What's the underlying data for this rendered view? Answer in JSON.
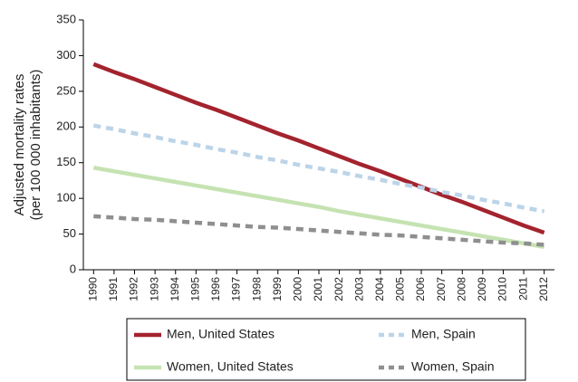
{
  "chart_data": {
    "type": "line",
    "y_label": [
      "Adjusted mortality rates",
      "(per 100 000 inhabitants)"
    ],
    "categories": [
      "1990",
      "1991",
      "1992",
      "1993",
      "1994",
      "1995",
      "1996",
      "1997",
      "1998",
      "1999",
      "2000",
      "2001",
      "2002",
      "2003",
      "2004",
      "2005",
      "2006",
      "2007",
      "2008",
      "2009",
      "2010",
      "2011",
      "2012"
    ],
    "series": [
      {
        "name": "Men, United States",
        "color": "#a3232e",
        "style": "solid",
        "values": [
          288,
          277,
          267,
          256,
          245,
          234,
          224,
          213,
          202,
          191,
          181,
          170,
          159,
          148,
          138,
          127,
          116,
          105,
          95,
          84,
          73,
          62,
          52
        ]
      },
      {
        "name": "Men, Spain",
        "color": "#bcd4e8",
        "style": "dashed",
        "values": [
          202,
          197,
          191,
          186,
          180,
          175,
          169,
          164,
          158,
          153,
          147,
          142,
          137,
          131,
          126,
          120,
          115,
          109,
          104,
          98,
          93,
          87,
          82
        ]
      },
      {
        "name": "Women, United States",
        "color": "#c5e3b2",
        "style": "solid",
        "values": [
          143,
          138,
          133,
          128,
          123,
          118,
          113,
          108,
          103,
          98,
          93,
          88,
          82,
          77,
          72,
          67,
          62,
          57,
          52,
          47,
          42,
          37,
          32
        ]
      },
      {
        "name": "Women, Spain",
        "color": "#8f8f8f",
        "style": "dashed",
        "values": [
          75,
          73,
          71,
          70,
          68,
          66,
          64,
          62,
          60,
          59,
          57,
          55,
          53,
          51,
          49,
          48,
          46,
          44,
          42,
          40,
          38,
          37,
          35
        ]
      }
    ],
    "ylim": [
      0,
      350
    ],
    "yticks": [
      0,
      50,
      100,
      150,
      200,
      250,
      300,
      350
    ],
    "grid": false
  }
}
